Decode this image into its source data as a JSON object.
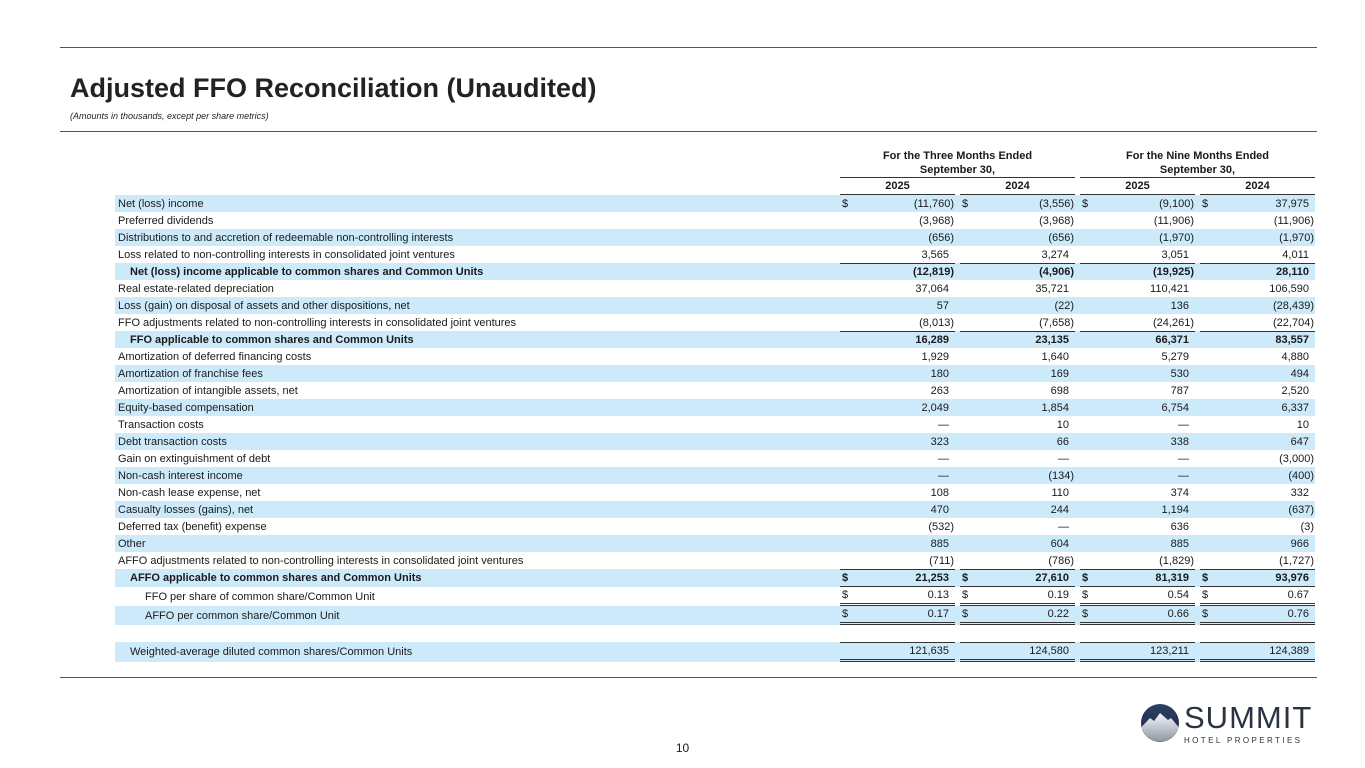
{
  "title": "Adjusted FFO Reconciliation (Unaudited)",
  "subtitle": "(Amounts in thousands, except per share metrics)",
  "header": {
    "group1": "For the Three Months Ended September 30,",
    "group2": "For the Nine Months Ended September 30,",
    "years": [
      "2025",
      "2024",
      "2025",
      "2024"
    ]
  },
  "rows": [
    {
      "label": "Net (loss) income",
      "values": [
        "(11,760)",
        "(3,556)",
        "(9,100)",
        "37,975"
      ],
      "dollar": true
    },
    {
      "label": "Preferred dividends",
      "values": [
        "(3,968)",
        "(3,968)",
        "(11,906)",
        "(11,906)"
      ]
    },
    {
      "label": "Distributions to and accretion of redeemable non-controlling interests",
      "values": [
        "(656)",
        "(656)",
        "(1,970)",
        "(1,970)"
      ]
    },
    {
      "label": "Loss related to non-controlling interests in consolidated joint ventures",
      "values": [
        "3,565",
        "3,274",
        "3,051",
        "4,011"
      ]
    },
    {
      "label": "Net (loss) income applicable to common shares and Common Units",
      "values": [
        "(12,819)",
        "(4,906)",
        "(19,925)",
        "28,110"
      ],
      "bold": true,
      "indent": 1,
      "top": true
    },
    {
      "label": "Real estate-related depreciation",
      "values": [
        "37,064",
        "35,721",
        "110,421",
        "106,590"
      ]
    },
    {
      "label": "Loss (gain) on disposal of assets and other dispositions, net",
      "values": [
        "57",
        "(22)",
        "136",
        "(28,439)"
      ]
    },
    {
      "label": "FFO adjustments related to non-controlling interests in consolidated joint ventures",
      "values": [
        "(8,013)",
        "(7,658)",
        "(24,261)",
        "(22,704)"
      ]
    },
    {
      "label": "FFO applicable to common shares and Common Units",
      "values": [
        "16,289",
        "23,135",
        "66,371",
        "83,557"
      ],
      "bold": true,
      "indent": 1,
      "top": true
    },
    {
      "label": "Amortization of deferred financing costs",
      "values": [
        "1,929",
        "1,640",
        "5,279",
        "4,880"
      ]
    },
    {
      "label": "Amortization of franchise fees",
      "values": [
        "180",
        "169",
        "530",
        "494"
      ]
    },
    {
      "label": "Amortization of intangible assets, net",
      "values": [
        "263",
        "698",
        "787",
        "2,520"
      ]
    },
    {
      "label": "Equity-based compensation",
      "values": [
        "2,049",
        "1,854",
        "6,754",
        "6,337"
      ]
    },
    {
      "label": "Transaction costs",
      "values": [
        "—",
        "10",
        "—",
        "10"
      ]
    },
    {
      "label": "Debt transaction costs",
      "values": [
        "323",
        "66",
        "338",
        "647"
      ]
    },
    {
      "label": "Gain on extinguishment of debt",
      "values": [
        "—",
        "—",
        "—",
        "(3,000)"
      ]
    },
    {
      "label": "Non-cash interest income",
      "values": [
        "—",
        "(134)",
        "—",
        "(400)"
      ]
    },
    {
      "label": "Non-cash lease expense, net",
      "values": [
        "108",
        "110",
        "374",
        "332"
      ]
    },
    {
      "label": "Casualty losses (gains), net",
      "values": [
        "470",
        "244",
        "1,194",
        "(637)"
      ]
    },
    {
      "label": "Deferred tax (benefit) expense",
      "values": [
        "(532)",
        "—",
        "636",
        "(3)"
      ]
    },
    {
      "label": "Other",
      "values": [
        "885",
        "604",
        "885",
        "966"
      ]
    },
    {
      "label": "AFFO adjustments related to non-controlling interests in consolidated joint ventures",
      "values": [
        "(711)",
        "(786)",
        "(1,829)",
        "(1,727)"
      ]
    },
    {
      "label": "AFFO applicable to common shares and Common Units",
      "values": [
        "21,253",
        "27,610",
        "81,319",
        "93,976"
      ],
      "bold": true,
      "indent": 1,
      "top": true,
      "bottom": "single",
      "dollar": true
    },
    {
      "label": "FFO per share of common share/Common Unit",
      "values": [
        "0.13",
        "0.19",
        "0.54",
        "0.67"
      ],
      "indent": 2,
      "bottom": "double",
      "dollar": true
    },
    {
      "label": "AFFO per common share/Common Unit",
      "values": [
        "0.17",
        "0.22",
        "0.66",
        "0.76"
      ],
      "indent": 2,
      "bottom": "double",
      "dollar": true
    },
    {
      "label": "",
      "values": [
        "",
        "",
        "",
        ""
      ],
      "blank": true
    },
    {
      "label": "Weighted-average diluted common shares/Common Units",
      "values": [
        "121,635",
        "124,580",
        "123,211",
        "124,389"
      ],
      "indent": 1,
      "top": true,
      "bottom": "double"
    }
  ],
  "page_number": "10",
  "logo": {
    "name": "SUMMIT",
    "tagline": "HOTEL PROPERTIES"
  },
  "colors": {
    "row_shade": "#cdeafb"
  }
}
